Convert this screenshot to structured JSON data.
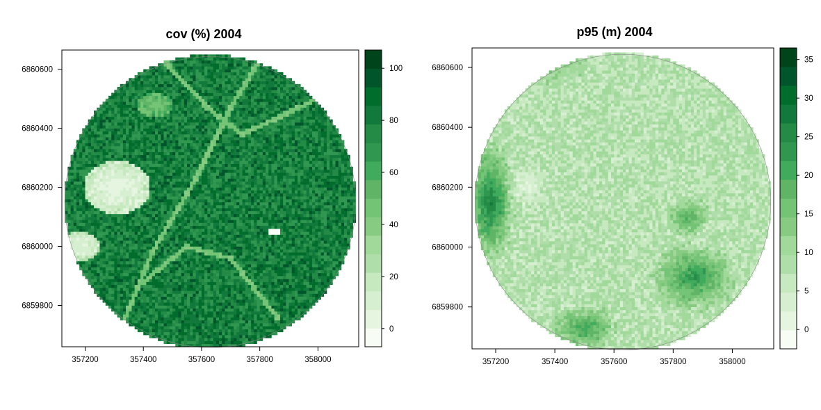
{
  "colors": {
    "palette": [
      "#f7fcf5",
      "#e5f5e0",
      "#d7efd1",
      "#c7e9c0",
      "#b0deaa",
      "#a1d99b",
      "#87cb82",
      "#74c476",
      "#5fb466",
      "#41ab5d",
      "#309750",
      "#238b45",
      "#11793b",
      "#006d2c",
      "#00562a",
      "#00441b"
    ],
    "na": "#ffffff",
    "frame": "#000000"
  },
  "chart_data": [
    {
      "type": "heatmap",
      "title": "cov (%) 2004",
      "x_ticks": [
        357200,
        357400,
        357600,
        357800,
        358000
      ],
      "y_ticks": [
        6859800,
        6860000,
        6860200,
        6860400,
        6860600
      ],
      "xlim": [
        357120,
        358140
      ],
      "ylim": [
        6859660,
        6860665
      ],
      "circle": {
        "center": [
          357630,
          6860150
        ],
        "radius": 500
      },
      "legend_ticks": [
        0,
        20,
        40,
        60,
        80,
        100
      ],
      "legend_range": [
        -7,
        107
      ],
      "value_pattern": {
        "base": 80,
        "clearings": [
          {
            "x": 357310,
            "y": 6860200,
            "rx": 115,
            "ry": 90,
            "value": 3
          },
          {
            "x": 357180,
            "y": 6860000,
            "rx": 70,
            "ry": 50,
            "value": 6
          },
          {
            "x": 357440,
            "y": 6860480,
            "rx": 60,
            "ry": 40,
            "value": 45
          }
        ],
        "roads": [
          [
            [
              357330,
              6859740
            ],
            [
              357430,
              6859980
            ],
            [
              357580,
              6860230
            ],
            [
              357700,
              6860470
            ],
            [
              357830,
              6860680
            ]
          ],
          [
            [
              357400,
              6859880
            ],
            [
              357550,
              6860000
            ],
            [
              357700,
              6859960
            ],
            [
              357860,
              6859760
            ]
          ],
          [
            [
              357480,
              6860620
            ],
            [
              357620,
              6860470
            ],
            [
              357740,
              6860380
            ],
            [
              358040,
              6860520
            ]
          ]
        ],
        "bright_patches": [
          {
            "x": 357850,
            "y": 6860050,
            "w": 50,
            "h": 12,
            "value": -5
          }
        ]
      }
    },
    {
      "type": "heatmap",
      "title": "p95 (m) 2004",
      "x_ticks": [
        357200,
        357400,
        357600,
        357800,
        358000
      ],
      "y_ticks": [
        6859800,
        6860000,
        6860200,
        6860400,
        6860600
      ],
      "xlim": [
        357120,
        358140
      ],
      "ylim": [
        6859660,
        6860665
      ],
      "circle": {
        "center": [
          357630,
          6860150
        ],
        "radius": 500
      },
      "legend_ticks": [
        0,
        5,
        10,
        15,
        20,
        25,
        30,
        35
      ],
      "legend_range": [
        -2.5,
        36.5
      ],
      "value_pattern": {
        "base": 8,
        "patches": [
          {
            "x": 357180,
            "y": 6860150,
            "rx": 90,
            "ry": 220,
            "value": 27
          },
          {
            "x": 357870,
            "y": 6859900,
            "rx": 150,
            "ry": 120,
            "value": 24
          },
          {
            "x": 357500,
            "y": 6859730,
            "rx": 120,
            "ry": 80,
            "value": 22
          },
          {
            "x": 357850,
            "y": 6860100,
            "rx": 80,
            "ry": 70,
            "value": 20
          },
          {
            "x": 357400,
            "y": 6860600,
            "rx": 120,
            "ry": 60,
            "value": 14
          },
          {
            "x": 357310,
            "y": 6860200,
            "rx": 80,
            "ry": 80,
            "value": 2
          }
        ]
      }
    }
  ]
}
